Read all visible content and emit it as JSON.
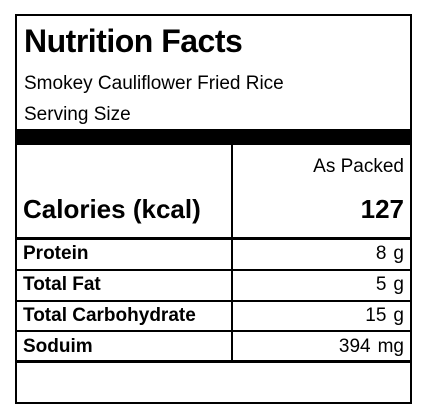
{
  "label": {
    "title": "Nutrition Facts",
    "product_name": "Smokey Cauliflower Fried Rice",
    "serving_size_label": "Serving Size",
    "column_header": "As Packed",
    "calories": {
      "label": "Calories (kcal)",
      "value": "127"
    },
    "nutrients": [
      {
        "label": "Protein",
        "value": "8",
        "unit": "g"
      },
      {
        "label": "Total Fat",
        "value": "5",
        "unit": "g"
      },
      {
        "label": "Total Carbohydrate",
        "value": "15",
        "unit": "g"
      },
      {
        "label": "Soduim",
        "value": "394",
        "unit": "mg"
      }
    ]
  }
}
